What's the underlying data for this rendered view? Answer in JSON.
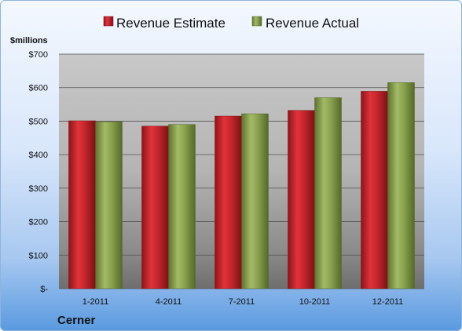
{
  "chart_data": {
    "type": "bar",
    "categories": [
      "1-2011",
      "4-2011",
      "7-2011",
      "10-2011",
      "12-2011"
    ],
    "series": [
      {
        "name": "Revenue Estimate",
        "values": [
          501,
          485,
          515,
          532,
          589
        ],
        "color": "#c0262c"
      },
      {
        "name": "Revenue Actual",
        "values": [
          498,
          490,
          522,
          570,
          615
        ],
        "color": "#8aa24e"
      }
    ],
    "ylabel": "$millions",
    "ylim": [
      0,
      700
    ],
    "yticks": [
      0,
      100,
      200,
      300,
      400,
      500,
      600,
      700
    ],
    "ytick_labels": [
      "$-",
      "$100",
      "$200",
      "$300",
      "$400",
      "$500",
      "$600",
      "$700"
    ],
    "grid": true,
    "legend_position": "top",
    "footer": "Cerner"
  }
}
